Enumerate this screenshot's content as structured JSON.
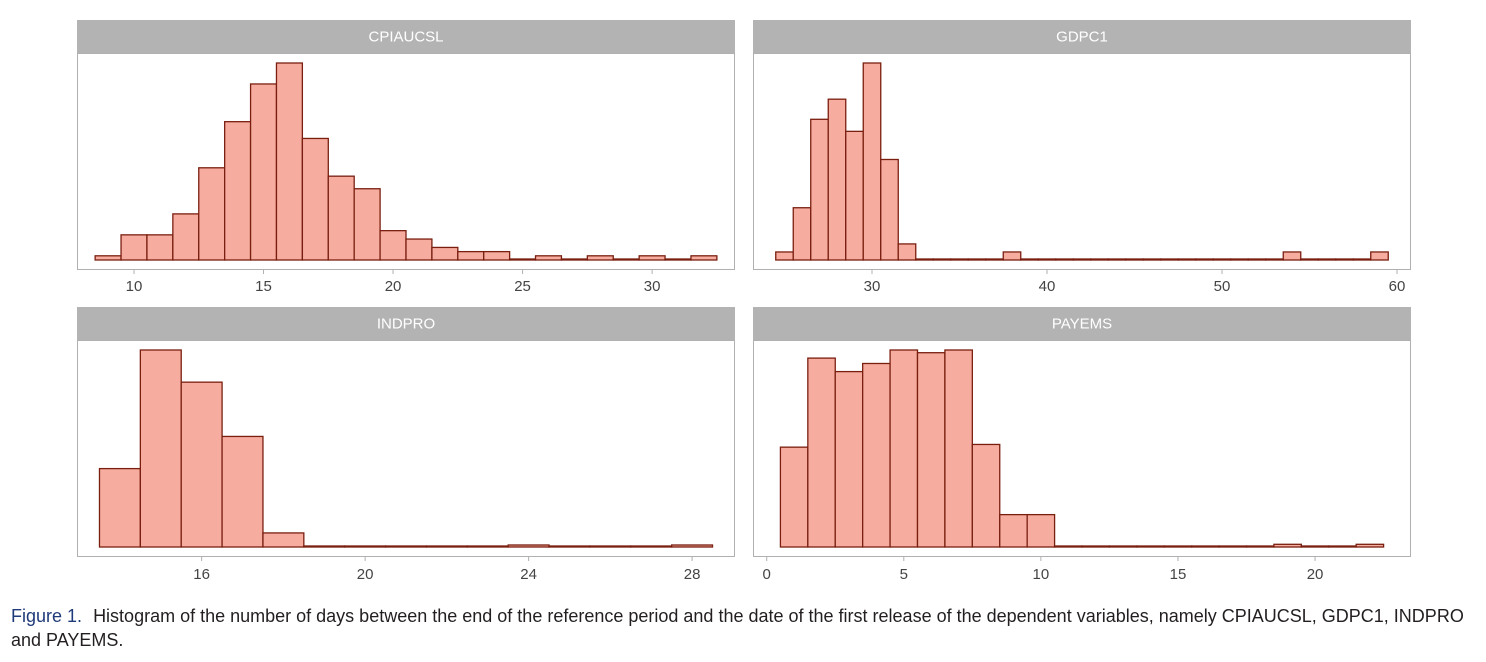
{
  "colors": {
    "bar_fill": "#f6ada0",
    "bar_stroke": "#7a1f10",
    "strip_fill": "#b3b3b3",
    "strip_text": "#ffffff",
    "panel_border": "#b0b0b0",
    "tick_text": "#444444"
  },
  "chart_data": [
    {
      "type": "bar",
      "panel": "CPIAUCSL",
      "title": "CPIAUCSL",
      "x_ticks": [
        10,
        15,
        20,
        25,
        30
      ],
      "xlim": [
        7.8,
        33.2
      ],
      "bin_width": 1,
      "bins": [
        9,
        10,
        11,
        12,
        13,
        14,
        15,
        16,
        17,
        18,
        19,
        20,
        21,
        22,
        23,
        24,
        25,
        26,
        27,
        28,
        29,
        30,
        31,
        32
      ],
      "counts": [
        1,
        6,
        6,
        11,
        22,
        33,
        42,
        47,
        29,
        20,
        17,
        7,
        5,
        3,
        2,
        2,
        0,
        1,
        0,
        1,
        0,
        1,
        0,
        1
      ],
      "ylim": [
        0,
        47
      ]
    },
    {
      "type": "bar",
      "panel": "GDPC1",
      "title": "GDPC1",
      "x_ticks": [
        30,
        40,
        50,
        60
      ],
      "xlim": [
        23.2,
        60.8
      ],
      "bin_width": 1,
      "bins": [
        25,
        26,
        27,
        28,
        29,
        30,
        31,
        32,
        33,
        34,
        35,
        36,
        37,
        38,
        39,
        40,
        41,
        42,
        43,
        44,
        45,
        46,
        47,
        48,
        49,
        50,
        51,
        52,
        53,
        54,
        55,
        56,
        57,
        58,
        59
      ],
      "counts": [
        2,
        13,
        35,
        40,
        32,
        49,
        25,
        4,
        0,
        0,
        0,
        0,
        0,
        2,
        0,
        0,
        0,
        0,
        0,
        0,
        0,
        0,
        0,
        0,
        0,
        0,
        0,
        0,
        0,
        2,
        0,
        0,
        0,
        0,
        2
      ],
      "ylim": [
        0,
        49
      ]
    },
    {
      "type": "bar",
      "panel": "INDPRO",
      "title": "INDPRO",
      "x_ticks": [
        16,
        20,
        24,
        28
      ],
      "xlim": [
        12.95,
        29.05
      ],
      "bin_width": 1,
      "bins": [
        14,
        15,
        16,
        17,
        18,
        19,
        20,
        21,
        22,
        23,
        24,
        25,
        26,
        27,
        28
      ],
      "counts": [
        39,
        98,
        82,
        55,
        7,
        0,
        0,
        0,
        0,
        0,
        1,
        0,
        0,
        0,
        1
      ],
      "ylim": [
        0,
        98
      ]
    },
    {
      "type": "bar",
      "panel": "PAYEMS",
      "title": "PAYEMS",
      "x_ticks": [
        0,
        5,
        10,
        15,
        20
      ],
      "xlim": [
        -0.5,
        23.5
      ],
      "bin_width": 1,
      "bins": [
        1,
        2,
        3,
        4,
        5,
        6,
        7,
        8,
        9,
        10,
        11,
        12,
        13,
        14,
        15,
        16,
        17,
        18,
        19,
        20,
        21,
        22
      ],
      "counts": [
        37,
        70,
        65,
        68,
        73,
        72,
        73,
        38,
        12,
        12,
        0,
        0,
        0,
        0,
        0,
        0,
        0,
        0,
        1,
        0,
        0,
        1
      ],
      "ylim": [
        0,
        73
      ]
    }
  ],
  "caption": {
    "label": "Figure 1.",
    "text": "Histogram of the number of days between the end of the reference period and the date of the first release of the dependent variables, namely CPIAUCSL, GDPC1, INDPRO and PAYEMS."
  }
}
